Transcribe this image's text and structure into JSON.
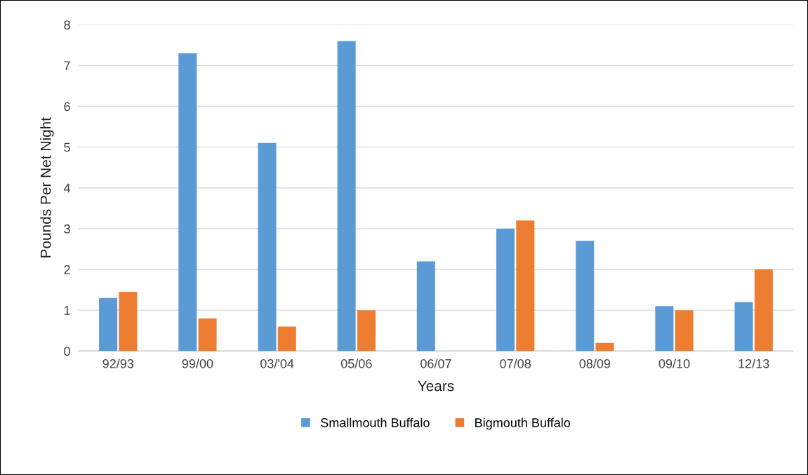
{
  "chart_data": {
    "type": "bar",
    "xlabel": "Years",
    "ylabel": "Pounds Per Net Night",
    "categories": [
      "92/93",
      "99/00",
      "03/'04",
      "05/06",
      "06/07",
      "07/08",
      "08/09",
      "09/10",
      "12/13"
    ],
    "series": [
      {
        "name": "Smallmouth Buffalo",
        "color": "#5b9bd5",
        "values": [
          1.3,
          7.3,
          5.1,
          7.6,
          2.2,
          3.0,
          2.7,
          1.1,
          1.2
        ]
      },
      {
        "name": "Bigmouth Buffalo",
        "color": "#ed7d31",
        "values": [
          1.45,
          0.8,
          0.6,
          1.0,
          null,
          3.2,
          0.2,
          1.0,
          2.0
        ]
      }
    ],
    "ylim": [
      0,
      8
    ],
    "yticks": [
      0,
      1,
      2,
      3,
      4,
      5,
      6,
      7,
      8
    ],
    "grid": "y",
    "legend": "bottom"
  }
}
